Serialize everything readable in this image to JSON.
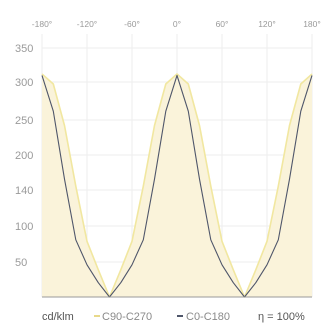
{
  "chart_data": {
    "type": "line",
    "title": "",
    "xlabel": "",
    "ylabel": "",
    "unit": "cd/klm",
    "efficiency": "η = 100%",
    "x_ticks": [
      "-180°",
      "-120°",
      "-60°",
      "0°",
      "60°",
      "120°",
      "180°"
    ],
    "y_ticks": [
      "350",
      "300",
      "250",
      "200",
      "140",
      "100",
      "50"
    ],
    "x": [
      -180,
      -165,
      -150,
      -135,
      -120,
      -105,
      -90,
      -75,
      -60,
      -45,
      -30,
      -15,
      0,
      15,
      30,
      45,
      60,
      75,
      90,
      105,
      120,
      135,
      150,
      165,
      180
    ],
    "series": [
      {
        "name": "C90-C270",
        "color": "#f1e7a0",
        "fill": "#faf3da",
        "values": [
          312,
          298,
          240,
          155,
          78,
          38,
          0,
          38,
          78,
          155,
          240,
          298,
          312,
          298,
          240,
          155,
          78,
          38,
          0,
          38,
          78,
          155,
          240,
          298,
          312
        ]
      },
      {
        "name": "C0-C180",
        "color": "#4f566a",
        "values": [
          310,
          260,
          165,
          80,
          45,
          20,
          0,
          20,
          45,
          80,
          165,
          260,
          310,
          260,
          165,
          80,
          45,
          20,
          0,
          20,
          45,
          80,
          165,
          260,
          310
        ]
      }
    ],
    "grid": true,
    "legend": "bottom"
  }
}
